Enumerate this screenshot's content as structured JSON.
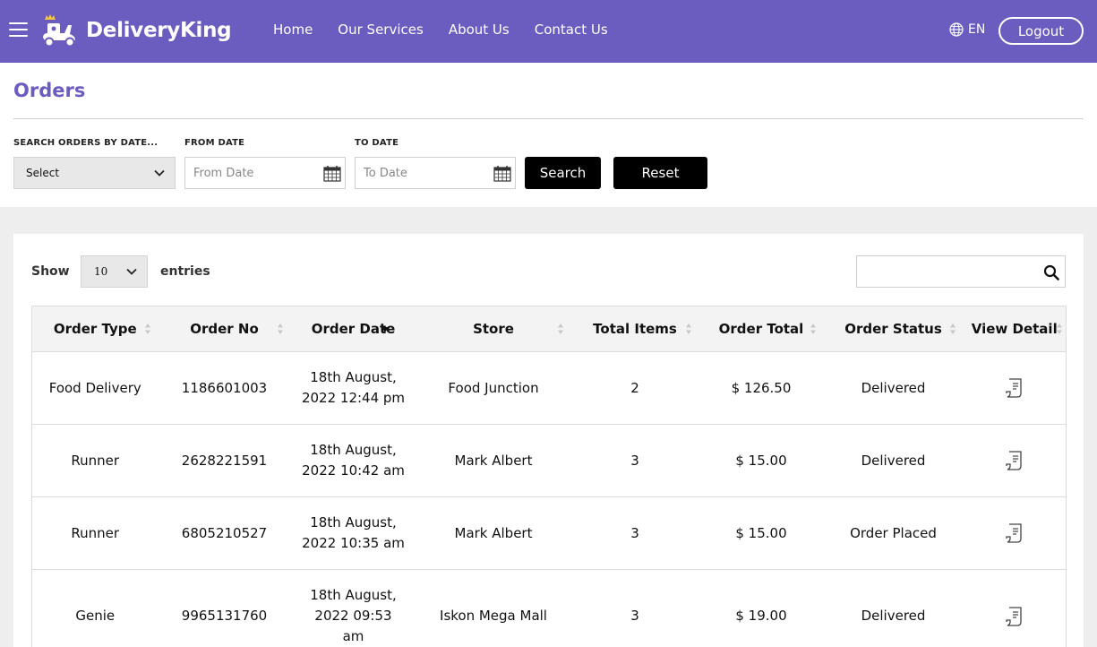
{
  "header": {
    "brand": "DeliveryKing",
    "nav": [
      "Home",
      "Our Services",
      "About Us",
      "Contact Us"
    ],
    "language": "EN",
    "logout_label": "Logout"
  },
  "page": {
    "title": "Orders"
  },
  "filters": {
    "search_by_label": "SEARCH ORDERS BY DATE...",
    "search_by_value": "Select",
    "from_label": "FROM DATE",
    "from_placeholder": "From Date",
    "to_label": "TO DATE",
    "to_placeholder": "To Date",
    "search_button": "Search",
    "reset_button": "Reset"
  },
  "table_controls": {
    "show_label": "Show",
    "entries_value": "10",
    "entries_label": "entries",
    "search_value": ""
  },
  "table": {
    "columns": [
      "Order Type",
      "Order No",
      "Order Date",
      "Store",
      "Total Items",
      "Order Total",
      "Order Status",
      "View Detail"
    ],
    "sorted_column": "Order Date",
    "rows": [
      {
        "type": "Food Delivery",
        "no": "1186601003",
        "date_line1": "18th August,",
        "date_line2": "2022 12:44 pm",
        "date_line3": "",
        "store": "Food Junction",
        "items": "2",
        "total": "$ 126.50",
        "status": "Delivered"
      },
      {
        "type": "Runner",
        "no": "2628221591",
        "date_line1": "18th August,",
        "date_line2": "2022 10:42 am",
        "date_line3": "",
        "store": "Mark Albert",
        "items": "3",
        "total": "$ 15.00",
        "status": "Delivered"
      },
      {
        "type": "Runner",
        "no": "6805210527",
        "date_line1": "18th August,",
        "date_line2": "2022 10:35 am",
        "date_line3": "",
        "store": "Mark Albert",
        "items": "3",
        "total": "$ 15.00",
        "status": "Order Placed"
      },
      {
        "type": "Genie",
        "no": "9965131760",
        "date_line1": "18th August,",
        "date_line2": "2022 09:53",
        "date_line3": "am",
        "store": "Iskon Mega Mall",
        "items": "3",
        "total": "$ 19.00",
        "status": "Delivered"
      }
    ]
  },
  "colors": {
    "brand": "#6b5cbf",
    "button_dark": "#000000",
    "band": "#eeeeee"
  },
  "icons": {
    "menu": "hamburger-icon",
    "logo": "delivery-scooter-icon",
    "language": "globe-icon",
    "select": "chevron-down-icon",
    "date": "calendar-icon",
    "search": "search-icon",
    "sort": "sort-arrows-icon",
    "detail": "receipt-icon"
  }
}
